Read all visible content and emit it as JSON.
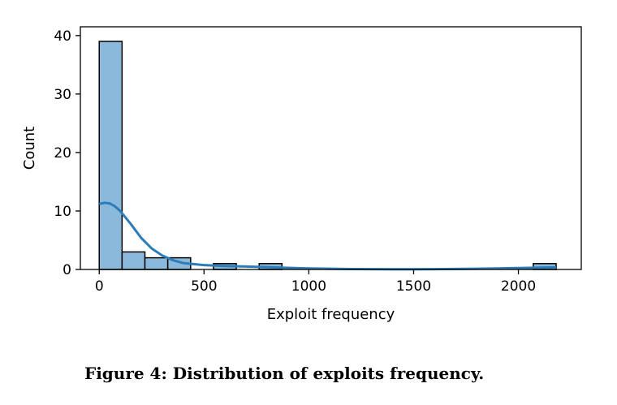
{
  "chart_data": {
    "type": "bar",
    "subtype": "histogram-with-kde",
    "xlabel": "Exploit frequency",
    "ylabel": "Count",
    "xlim": [
      -90,
      2300
    ],
    "ylim": [
      0,
      41.5
    ],
    "xticks": [
      0,
      500,
      1000,
      1500,
      2000
    ],
    "yticks": [
      0,
      10,
      20,
      30,
      40
    ],
    "bin_width": 109,
    "bins": [
      {
        "start": 0,
        "end": 109,
        "count": 39
      },
      {
        "start": 109,
        "end": 218,
        "count": 3
      },
      {
        "start": 218,
        "end": 327,
        "count": 2
      },
      {
        "start": 327,
        "end": 436,
        "count": 2
      },
      {
        "start": 545,
        "end": 654,
        "count": 1
      },
      {
        "start": 763,
        "end": 872,
        "count": 1
      },
      {
        "start": 2071,
        "end": 2180,
        "count": 1
      }
    ],
    "kde": {
      "x": [
        0,
        25,
        50,
        75,
        100,
        150,
        200,
        250,
        300,
        350,
        400,
        500,
        600,
        700,
        800,
        900,
        1000,
        1200,
        1400,
        1600,
        1800,
        1900,
        2000,
        2100,
        2180
      ],
      "y": [
        11.2,
        11.4,
        11.3,
        10.8,
        10.0,
        7.8,
        5.4,
        3.6,
        2.4,
        1.6,
        1.1,
        0.75,
        0.6,
        0.5,
        0.4,
        0.28,
        0.18,
        0.07,
        0.03,
        0.05,
        0.12,
        0.18,
        0.25,
        0.32,
        0.36
      ]
    },
    "colors": {
      "bar_fill": "#8bb9db",
      "bar_edge": "#000000",
      "kde_line": "#2d7cb8"
    }
  },
  "caption": "Figure 4: Distribution of exploits frequency."
}
